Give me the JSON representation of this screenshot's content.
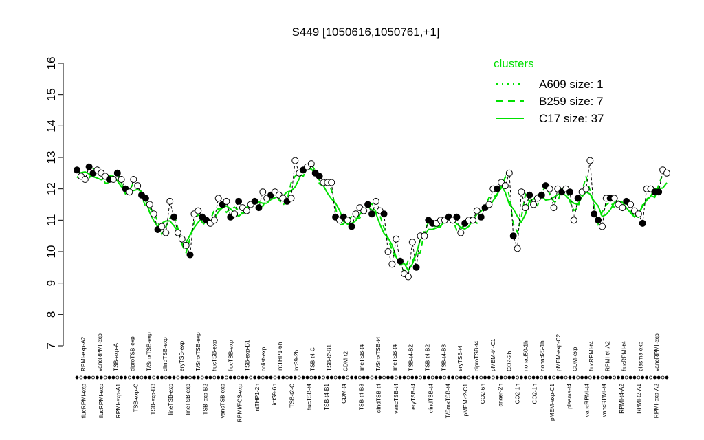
{
  "chart_data": {
    "type": "line",
    "title": "S449 [1050616,1050761,+1]",
    "xlabel": "",
    "ylabel": "",
    "ylim": [
      7,
      16
    ],
    "yticks": [
      7,
      8,
      9,
      10,
      11,
      12,
      13,
      14,
      15,
      16
    ],
    "colors": {
      "cluster": "#00e000",
      "points_fill": "#ffffff",
      "points_dark": "#000000",
      "axis": "#000000"
    },
    "legend": {
      "title": "clusters",
      "placement": "top-right",
      "entries": [
        {
          "label": "A609 size: 1",
          "style": "dotted"
        },
        {
          "label": "B259 size: 7",
          "style": "dashed"
        },
        {
          "label": "C17 size: 37",
          "style": "solid"
        }
      ]
    },
    "labels_top": [
      "RPMI-exp-A2",
      "vancRPMI-exp",
      "TSB-exp-A",
      "ciproTSB-exp",
      "T/SmxTSB-exp",
      "clindTSB-exp",
      "eryTSB-exp",
      "T/SmxTSB-exp",
      "flucTSB-exp",
      "flucTSB-exp",
      "TSB-exp-B1",
      "colist-exp",
      "intTHP1-6h",
      "intS9-2h",
      "TSB-t4-C",
      "TSB-t2-B1",
      "CDM-t2",
      "lineTSB-t4",
      "T/SmxTSB-t4",
      "lineTSB-t4",
      "TSB-t4-B2",
      "TSB-t4-B2",
      "TSB-t4-B3",
      "eryTSB-t4",
      "ciproTSB-t4",
      "pMEM-t4-C1",
      "CO2-2h",
      "nonad50-1h",
      "nonad25-1h",
      "pMEM-exp-C2",
      "CDM-exp",
      "flucRPMI-t4",
      "RPMI-t4-A2",
      "flucRPMI-t4",
      "plasma-exp",
      "vancRPMI-exp"
    ],
    "labels_bottom": [
      "flucRPMI-exp",
      "flucRPMI-exp",
      "RPMI-exp-A1",
      "TSB-exp-C",
      "TSB-exp-B3",
      "lineTSB-exp",
      "lineTSB-exp",
      "TSB-exp-B2",
      "vancTSB-exp",
      "RPMI/FCS-exp",
      "intTHP1-2h",
      "intS9-6h",
      "TSB-t2-C",
      "flucTSB-t4",
      "TSB-t4-B1",
      "CDM-t4",
      "TSB-t4-B3",
      "clindTSB-t4",
      "vancTSB-t4",
      "eryTSB-t4",
      "clindTSB-t4",
      "T/SmxTSB-t4",
      "pMEM-t2-C1",
      "CO2-6h",
      "anaer-2h",
      "CO2-1h",
      "CO2-1h",
      "pMEM-exp-C1",
      "plasma-t4",
      "vancRPMI-t4",
      "vancRPMI-t4",
      "RPMI-t4-A2",
      "RPMI-t2-A1",
      "RPMI-exp-A2"
    ],
    "points": [
      12.6,
      12.4,
      12.3,
      12.7,
      12.5,
      12.6,
      12.5,
      12.4,
      12.3,
      12.3,
      12.5,
      12.3,
      12.0,
      11.9,
      12.3,
      12.1,
      11.8,
      11.7,
      11.5,
      11.2,
      10.7,
      10.8,
      10.6,
      11.6,
      11.1,
      10.6,
      10.4,
      10.2,
      9.9,
      11.2,
      11.3,
      11.1,
      11.0,
      10.9,
      11.0,
      11.7,
      11.5,
      11.6,
      11.1,
      11.2,
      11.6,
      11.4,
      11.3,
      11.5,
      11.6,
      11.4,
      11.9,
      11.7,
      11.8,
      11.9,
      11.8,
      11.7,
      11.6,
      11.7,
      12.9,
      12.5,
      12.6,
      12.7,
      12.8,
      12.5,
      12.4,
      12.2,
      12.2,
      12.2,
      11.1,
      11.0,
      11.1,
      11.0,
      10.8,
      11.2,
      11.4,
      11.3,
      11.5,
      11.2,
      11.6,
      11.3,
      11.2,
      10.0,
      9.6,
      10.4,
      9.7,
      9.3,
      9.2,
      10.3,
      9.5,
      10.5,
      10.5,
      11.0,
      10.9,
      10.9,
      11.0,
      11.0,
      11.1,
      11.0,
      11.1,
      10.6,
      10.9,
      11.0,
      11.0,
      11.3,
      11.1,
      11.4,
      11.5,
      12.0,
      12.0,
      12.2,
      12.1,
      12.5,
      10.5,
      10.1,
      11.9,
      11.4,
      11.8,
      11.5,
      11.7,
      11.8,
      12.1,
      12.0,
      11.4,
      12.0,
      11.9,
      12.0,
      11.9,
      11.0,
      11.7,
      11.9,
      12.0,
      12.9,
      11.2,
      11.0,
      10.8,
      11.7,
      11.7,
      11.7,
      11.5,
      11.4,
      11.6,
      11.5,
      11.3,
      11.2,
      10.9,
      12.0,
      12.0,
      11.9,
      11.9,
      12.6,
      12.5
    ]
  }
}
